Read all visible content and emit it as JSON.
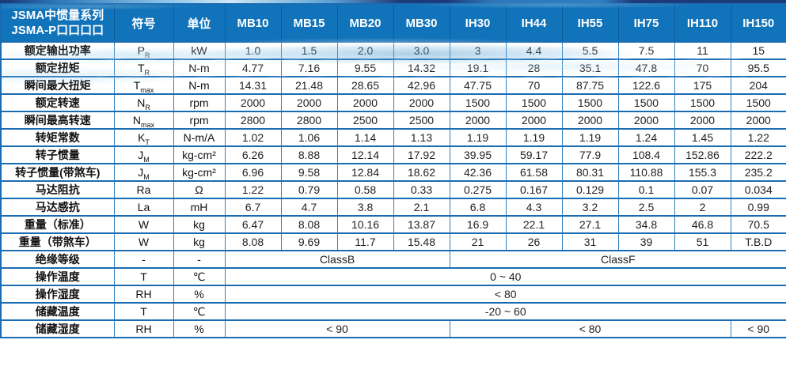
{
  "colors": {
    "header_blue": "#1173b9",
    "border_blue": "#1a6cb2",
    "navy": "#1d3b7a",
    "wave_blue": "#8ec4e8"
  },
  "table": {
    "title_line1": "JSMA中惯量系列",
    "title_line2": "JSMA-P口口口口",
    "col_symbol": "符号",
    "col_unit": "单位",
    "models": [
      "MB10",
      "MB15",
      "MB20",
      "MB30",
      "IH30",
      "IH44",
      "IH55",
      "IH75",
      "IH110",
      "IH150"
    ],
    "rows": [
      {
        "label": "额定输出功率",
        "symbol": {
          "base": "P",
          "sub": "R"
        },
        "unit": "kW",
        "values": [
          "1.0",
          "1.5",
          "2.0",
          "3.0",
          "3",
          "4.4",
          "5.5",
          "7.5",
          "11",
          "15"
        ]
      },
      {
        "label": "额定扭矩",
        "symbol": {
          "base": "T",
          "sub": "R"
        },
        "unit": "N-m",
        "values": [
          "4.77",
          "7.16",
          "9.55",
          "14.32",
          "19.1",
          "28",
          "35.1",
          "47.8",
          "70",
          "95.5"
        ]
      },
      {
        "label": "瞬间最大扭矩",
        "symbol": {
          "base": "T",
          "sub": "max"
        },
        "unit": "N-m",
        "values": [
          "14.31",
          "21.48",
          "28.65",
          "42.96",
          "47.75",
          "70",
          "87.75",
          "122.6",
          "175",
          "204"
        ]
      },
      {
        "label": "额定转速",
        "symbol": {
          "base": "N",
          "sub": "R"
        },
        "unit": "rpm",
        "values": [
          "2000",
          "2000",
          "2000",
          "2000",
          "1500",
          "1500",
          "1500",
          "1500",
          "1500",
          "1500"
        ]
      },
      {
        "label": "瞬间最高转速",
        "symbol": {
          "base": "N",
          "sub": "max"
        },
        "unit": "rpm",
        "values": [
          "2800",
          "2800",
          "2500",
          "2500",
          "2000",
          "2000",
          "2000",
          "2000",
          "2000",
          "2000"
        ]
      },
      {
        "label": "转矩常数",
        "symbol": {
          "base": "K",
          "sub": "T"
        },
        "unit": "N-m/A",
        "values": [
          "1.02",
          "1.06",
          "1.14",
          "1.13",
          "1.19",
          "1.19",
          "1.19",
          "1.24",
          "1.45",
          "1.22"
        ]
      },
      {
        "label": "转子惯量",
        "symbol": {
          "base": "J",
          "sub": "M"
        },
        "unit": "kg-cm²",
        "values": [
          "6.26",
          "8.88",
          "12.14",
          "17.92",
          "39.95",
          "59.17",
          "77.9",
          "108.4",
          "152.86",
          "222.2"
        ]
      },
      {
        "label": "转子惯量(带煞车)",
        "symbol": {
          "base": "J",
          "sub": "M"
        },
        "unit": "kg-cm²",
        "values": [
          "6.96",
          "9.58",
          "12.84",
          "18.62",
          "42.36",
          "61.58",
          "80.31",
          "110.88",
          "155.3",
          "235.2"
        ]
      },
      {
        "label": "马达阻抗",
        "symbol": {
          "base": "Ra",
          "sub": ""
        },
        "unit": "Ω",
        "values": [
          "1.22",
          "0.79",
          "0.58",
          "0.33",
          "0.275",
          "0.167",
          "0.129",
          "0.1",
          "0.07",
          "0.034"
        ]
      },
      {
        "label": "马达感抗",
        "symbol": {
          "base": "La",
          "sub": ""
        },
        "unit": "mH",
        "values": [
          "6.7",
          "4.7",
          "3.8",
          "2.1",
          "6.8",
          "4.3",
          "3.2",
          "2.5",
          "2",
          "0.99"
        ]
      },
      {
        "label": "重量（标准）",
        "symbol": {
          "base": "W",
          "sub": ""
        },
        "unit": "kg",
        "values": [
          "6.47",
          "8.08",
          "10.16",
          "13.87",
          "16.9",
          "22.1",
          "27.1",
          "34.8",
          "46.8",
          "70.5"
        ]
      },
      {
        "label": "重量（带煞车）",
        "symbol": {
          "base": "W",
          "sub": ""
        },
        "unit": "kg",
        "values": [
          "8.08",
          "9.69",
          "11.7",
          "15.48",
          "21",
          "26",
          "31",
          "39",
          "51",
          "T.B.D"
        ]
      },
      {
        "label": "绝缘等级",
        "symbol": {
          "base": "-",
          "sub": ""
        },
        "unit": "-",
        "spans": [
          {
            "text": "ClassB",
            "cols": 4
          },
          {
            "text": "ClassF",
            "cols": 6
          }
        ]
      },
      {
        "label": "操作温度",
        "symbol": {
          "base": "T",
          "sub": ""
        },
        "unit": "℃",
        "spans": [
          {
            "text": "0 ~ 40",
            "cols": 10
          }
        ]
      },
      {
        "label": "操作湿度",
        "symbol": {
          "base": "RH",
          "sub": ""
        },
        "unit": "%",
        "spans": [
          {
            "text": "< 80",
            "cols": 10
          }
        ]
      },
      {
        "label": "储藏温度",
        "symbol": {
          "base": "T",
          "sub": ""
        },
        "unit": "℃",
        "spans": [
          {
            "text": "-20 ~ 60",
            "cols": 10
          }
        ]
      },
      {
        "label": "储藏湿度",
        "symbol": {
          "base": "RH",
          "sub": ""
        },
        "unit": "%",
        "spans": [
          {
            "text": "< 90",
            "cols": 4
          },
          {
            "text": "< 80",
            "cols": 5
          },
          {
            "text": "< 90",
            "cols": 1
          }
        ]
      }
    ]
  }
}
